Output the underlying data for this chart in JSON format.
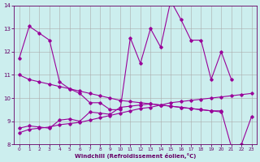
{
  "xlabel": "Windchill (Refroidissement éolien,°C)",
  "x": [
    0,
    1,
    2,
    3,
    4,
    5,
    6,
    7,
    8,
    9,
    10,
    11,
    12,
    13,
    14,
    15,
    16,
    17,
    18,
    19,
    20,
    21,
    22,
    23
  ],
  "line1": [
    11.7,
    13.1,
    12.8,
    12.5,
    10.7,
    10.4,
    10.2,
    9.8,
    9.8,
    9.5,
    9.5,
    12.6,
    11.5,
    13.0,
    12.2,
    14.2,
    13.4,
    12.5,
    12.5,
    10.8,
    12.0,
    10.8,
    null,
    null
  ],
  "line2": [
    11.0,
    10.8,
    10.7,
    10.6,
    10.5,
    10.4,
    10.3,
    10.2,
    10.1,
    10.0,
    9.9,
    9.85,
    9.8,
    9.75,
    9.7,
    9.65,
    9.6,
    9.55,
    9.5,
    9.45,
    9.4,
    9.35,
    null,
    null
  ],
  "line3": [
    8.5,
    8.65,
    8.7,
    8.75,
    8.85,
    8.9,
    8.95,
    9.05,
    9.15,
    9.25,
    9.35,
    9.45,
    9.55,
    9.6,
    9.7,
    9.8,
    9.85,
    9.9,
    9.95,
    10.0,
    10.05,
    10.1,
    10.15,
    10.2
  ],
  "line4": [
    8.7,
    8.8,
    8.75,
    8.7,
    9.05,
    9.1,
    9.0,
    9.4,
    9.35,
    9.3,
    9.6,
    9.65,
    9.7,
    9.75,
    9.7,
    9.65,
    9.6,
    9.55,
    9.5,
    9.45,
    9.45,
    7.9,
    8.0,
    9.2
  ],
  "color": "#990099",
  "bg_color": "#cceeee",
  "ylim": [
    8,
    14
  ],
  "xlim": [
    -0.5,
    23.5
  ],
  "yticks": [
    8,
    9,
    10,
    11,
    12,
    13,
    14
  ],
  "xticks": [
    0,
    1,
    2,
    3,
    4,
    5,
    6,
    7,
    8,
    9,
    10,
    11,
    12,
    13,
    14,
    15,
    16,
    17,
    18,
    19,
    20,
    21,
    22,
    23
  ]
}
